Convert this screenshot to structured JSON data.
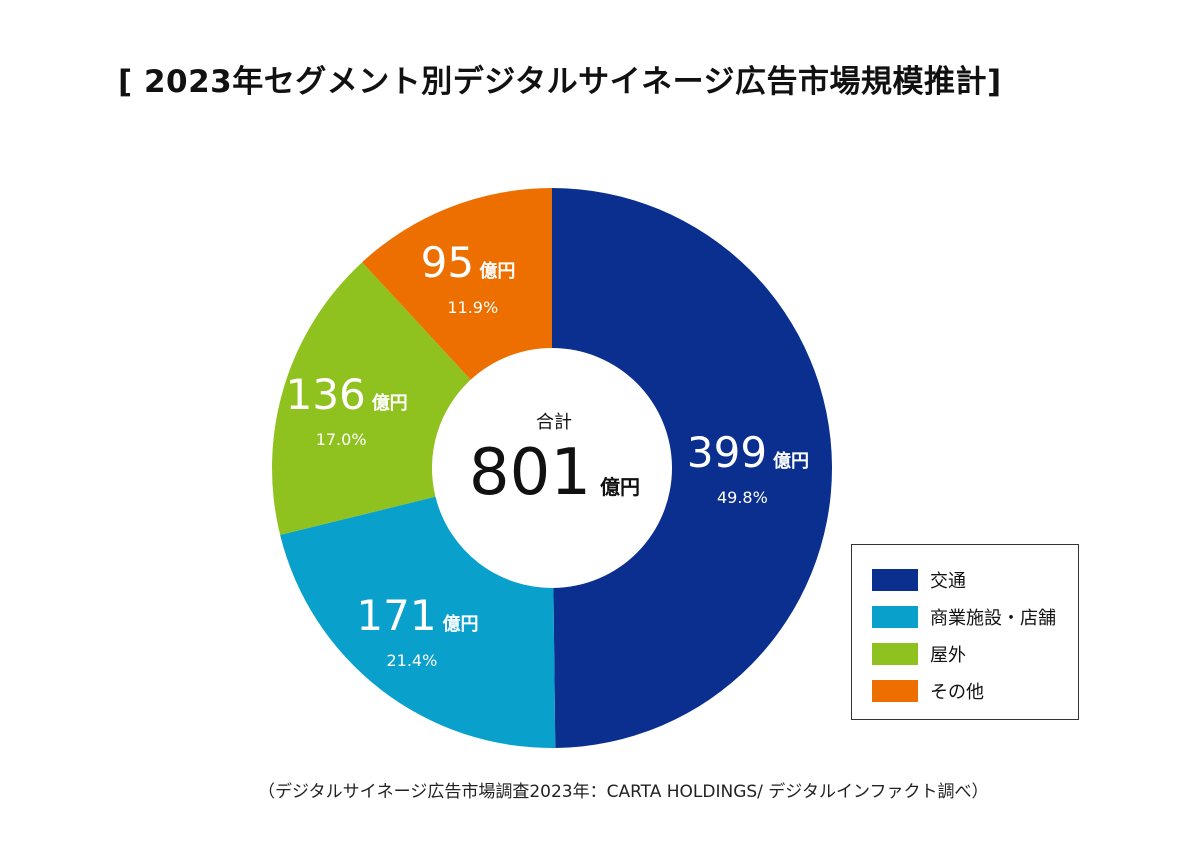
{
  "title": "[ 2023年セグメント別デジタルサイネージ広告市場規模推計]",
  "source": "（デジタルサイネージ広告市場調査2023年：CARTA HOLDINGS/ デジタルインファクト調べ）",
  "chart_data": {
    "type": "pie",
    "variant": "donut",
    "unit": "億円",
    "center": {
      "label": "合計",
      "value": "801",
      "unit": "億円"
    },
    "categories": [
      "交通",
      "商業施設・店舗",
      "屋外",
      "その他"
    ],
    "values": [
      399,
      171,
      136,
      95
    ],
    "percents": [
      "49.8%",
      "21.4%",
      "17.0%",
      "11.9%"
    ],
    "colors": [
      "#0b2f8f",
      "#0aa0cc",
      "#8fc21f",
      "#ec6f00"
    ],
    "legend_position": "bottom-right"
  }
}
